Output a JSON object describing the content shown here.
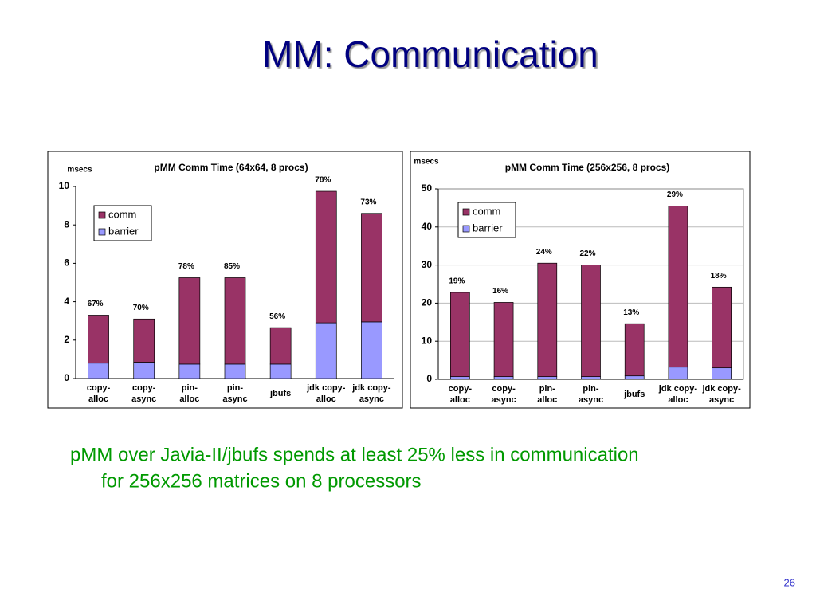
{
  "title": "MM: Communication",
  "body": [
    "pMM over Javia-II/jbufs spends at least 25% less in communication",
    "for 256x256 matrices on 8 processors"
  ],
  "page_number": "26",
  "chart_data": [
    {
      "type": "bar",
      "stacked": true,
      "title": "pMM Comm Time (64x64, 8 procs)",
      "y_label": "msecs",
      "categories": [
        [
          "copy-",
          "alloc"
        ],
        [
          "copy-",
          "async"
        ],
        [
          "pin-",
          "alloc"
        ],
        [
          "pin-",
          "async"
        ],
        [
          "jbufs"
        ],
        [
          "jdk copy-",
          "alloc"
        ],
        [
          "jdk copy-",
          "async"
        ]
      ],
      "series": [
        {
          "name": "barrier",
          "color": "#9999ff",
          "values": [
            0.8,
            0.85,
            0.75,
            0.75,
            0.75,
            2.9,
            2.95
          ]
        },
        {
          "name": "comm",
          "color": "#993366",
          "values": [
            2.5,
            2.25,
            4.5,
            4.5,
            1.9,
            6.85,
            5.65
          ]
        }
      ],
      "annotations": [
        "67%",
        "70%",
        "78%",
        "85%",
        "56%",
        "78%",
        "73%"
      ],
      "ylim": [
        0,
        10
      ],
      "yticks": [
        0,
        2,
        4,
        6,
        8,
        10
      ],
      "grid": false,
      "legend": "top-left"
    },
    {
      "type": "bar",
      "stacked": true,
      "title": "pMM Comm Time (256x256, 8 procs)",
      "y_label": "msecs",
      "categories": [
        [
          "copy-",
          "alloc"
        ],
        [
          "copy-",
          "async"
        ],
        [
          "pin-",
          "alloc"
        ],
        [
          "pin-",
          "async"
        ],
        [
          "jbufs"
        ],
        [
          "jdk copy-",
          "alloc"
        ],
        [
          "jdk copy-",
          "async"
        ]
      ],
      "series": [
        {
          "name": "barrier",
          "color": "#9999ff",
          "values": [
            0.7,
            0.7,
            0.7,
            0.7,
            0.9,
            3.2,
            3.0
          ]
        },
        {
          "name": "comm",
          "color": "#993366",
          "values": [
            22.1,
            19.5,
            29.8,
            29.3,
            13.7,
            42.3,
            21.2
          ]
        }
      ],
      "annotations": [
        "19%",
        "16%",
        "24%",
        "22%",
        "13%",
        "29%",
        "18%"
      ],
      "ylim": [
        0,
        50
      ],
      "yticks": [
        0,
        10,
        20,
        30,
        40,
        50
      ],
      "grid": true,
      "legend": "top-left"
    }
  ]
}
